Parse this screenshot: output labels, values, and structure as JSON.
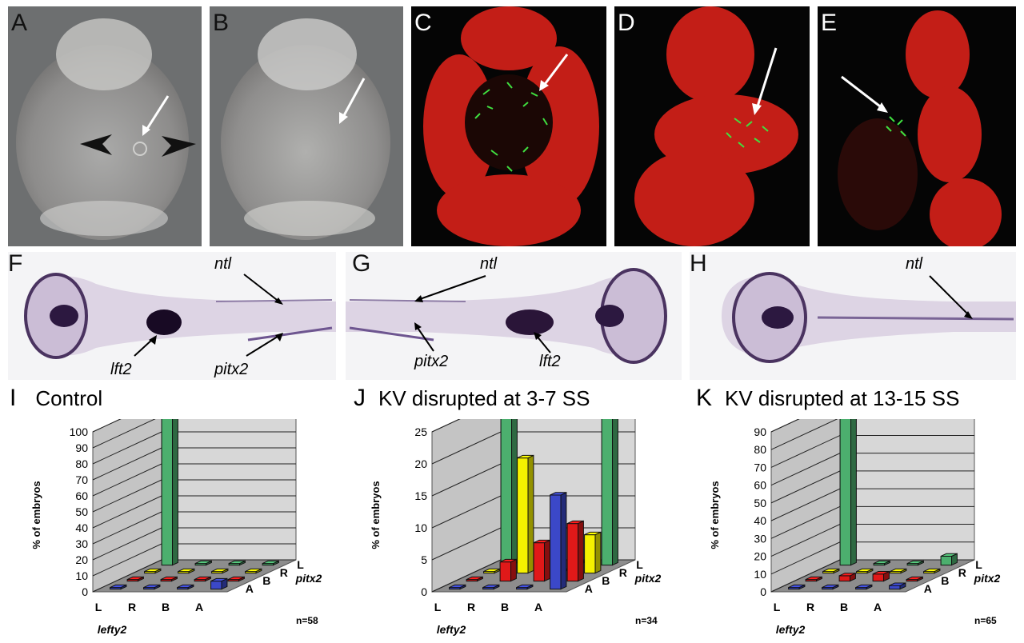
{
  "panels": {
    "a": {
      "label": "A"
    },
    "b": {
      "label": "B"
    },
    "c": {
      "label": "C"
    },
    "d": {
      "label": "D"
    },
    "e": {
      "label": "E"
    },
    "f": {
      "label": "F",
      "ntl": "ntl",
      "lft2": "lft2",
      "pitx2": "pitx2"
    },
    "g": {
      "label": "G",
      "ntl": "ntl",
      "lft2": "lft2",
      "pitx2": "pitx2"
    },
    "h": {
      "label": "H",
      "ntl": "ntl"
    }
  },
  "charts": {
    "i": {
      "label": "I",
      "title": "Control"
    },
    "j": {
      "label": "J",
      "title": "KV disrupted at 3-7 SS"
    },
    "k": {
      "label": "K",
      "title": "KV disrupted at 13-15 SS"
    }
  },
  "colors": {
    "green": "#4caf6e",
    "yellow": "#f5f100",
    "red": "#e01919",
    "blue": "#3b48c8",
    "nuclei": "#e8201a",
    "cilia": "#39d43a"
  },
  "chart_data": [
    {
      "type": "bar",
      "title": "Control",
      "x_axis_label": "lefty2",
      "x_categories": [
        "L",
        "R",
        "B",
        "A"
      ],
      "depth_axis_label": "pitx2",
      "depth_categories": [
        "A",
        "B",
        "R",
        "L"
      ],
      "ylabel": "% of embryos",
      "yticks": [
        0,
        10,
        20,
        30,
        40,
        50,
        60,
        70,
        80,
        90,
        100
      ],
      "ylim": [
        0,
        100
      ],
      "n": "n=58",
      "bars": [
        {
          "lefty2": "L",
          "pitx2": "L",
          "value": 95
        },
        {
          "lefty2": "A",
          "pitx2": "A",
          "value": 5
        }
      ]
    },
    {
      "type": "bar",
      "title": "KV disrupted at 3-7 SS",
      "x_axis_label": "lefty2",
      "x_categories": [
        "L",
        "R",
        "B",
        "A"
      ],
      "depth_axis_label": "pitx2",
      "depth_categories": [
        "A",
        "B",
        "R",
        "L"
      ],
      "ylabel": "% of embryos",
      "yticks": [
        0,
        5,
        10,
        15,
        20,
        25
      ],
      "ylim": [
        0,
        25
      ],
      "n": "n=34",
      "bars": [
        {
          "lefty2": "L",
          "pitx2": "L",
          "value": 26.5
        },
        {
          "lefty2": "R",
          "pitx2": "B",
          "value": 3
        },
        {
          "lefty2": "R",
          "pitx2": "R",
          "value": 18
        },
        {
          "lefty2": "B",
          "pitx2": "B",
          "value": 6
        },
        {
          "lefty2": "A",
          "pitx2": "A",
          "value": 14.7
        },
        {
          "lefty2": "A",
          "pitx2": "B",
          "value": 9
        },
        {
          "lefty2": "A",
          "pitx2": "R",
          "value": 6
        },
        {
          "lefty2": "A",
          "pitx2": "L",
          "value": 26.5
        }
      ]
    },
    {
      "type": "bar",
      "title": "KV disrupted at 13-15 SS",
      "x_axis_label": "lefty2",
      "x_categories": [
        "L",
        "R",
        "B",
        "A"
      ],
      "depth_axis_label": "pitx2",
      "depth_categories": [
        "A",
        "B",
        "R",
        "L"
      ],
      "ylabel": "% of embryos",
      "yticks": [
        0,
        10,
        20,
        30,
        40,
        50,
        60,
        70,
        80,
        90
      ],
      "ylim": [
        0,
        90
      ],
      "n": "n=65",
      "bars": [
        {
          "lefty2": "L",
          "pitx2": "L",
          "value": 90
        },
        {
          "lefty2": "R",
          "pitx2": "B",
          "value": 3
        },
        {
          "lefty2": "B",
          "pitx2": "B",
          "value": 4
        },
        {
          "lefty2": "A",
          "pitx2": "L",
          "value": 5
        },
        {
          "lefty2": "A",
          "pitx2": "A",
          "value": 2
        }
      ]
    }
  ]
}
